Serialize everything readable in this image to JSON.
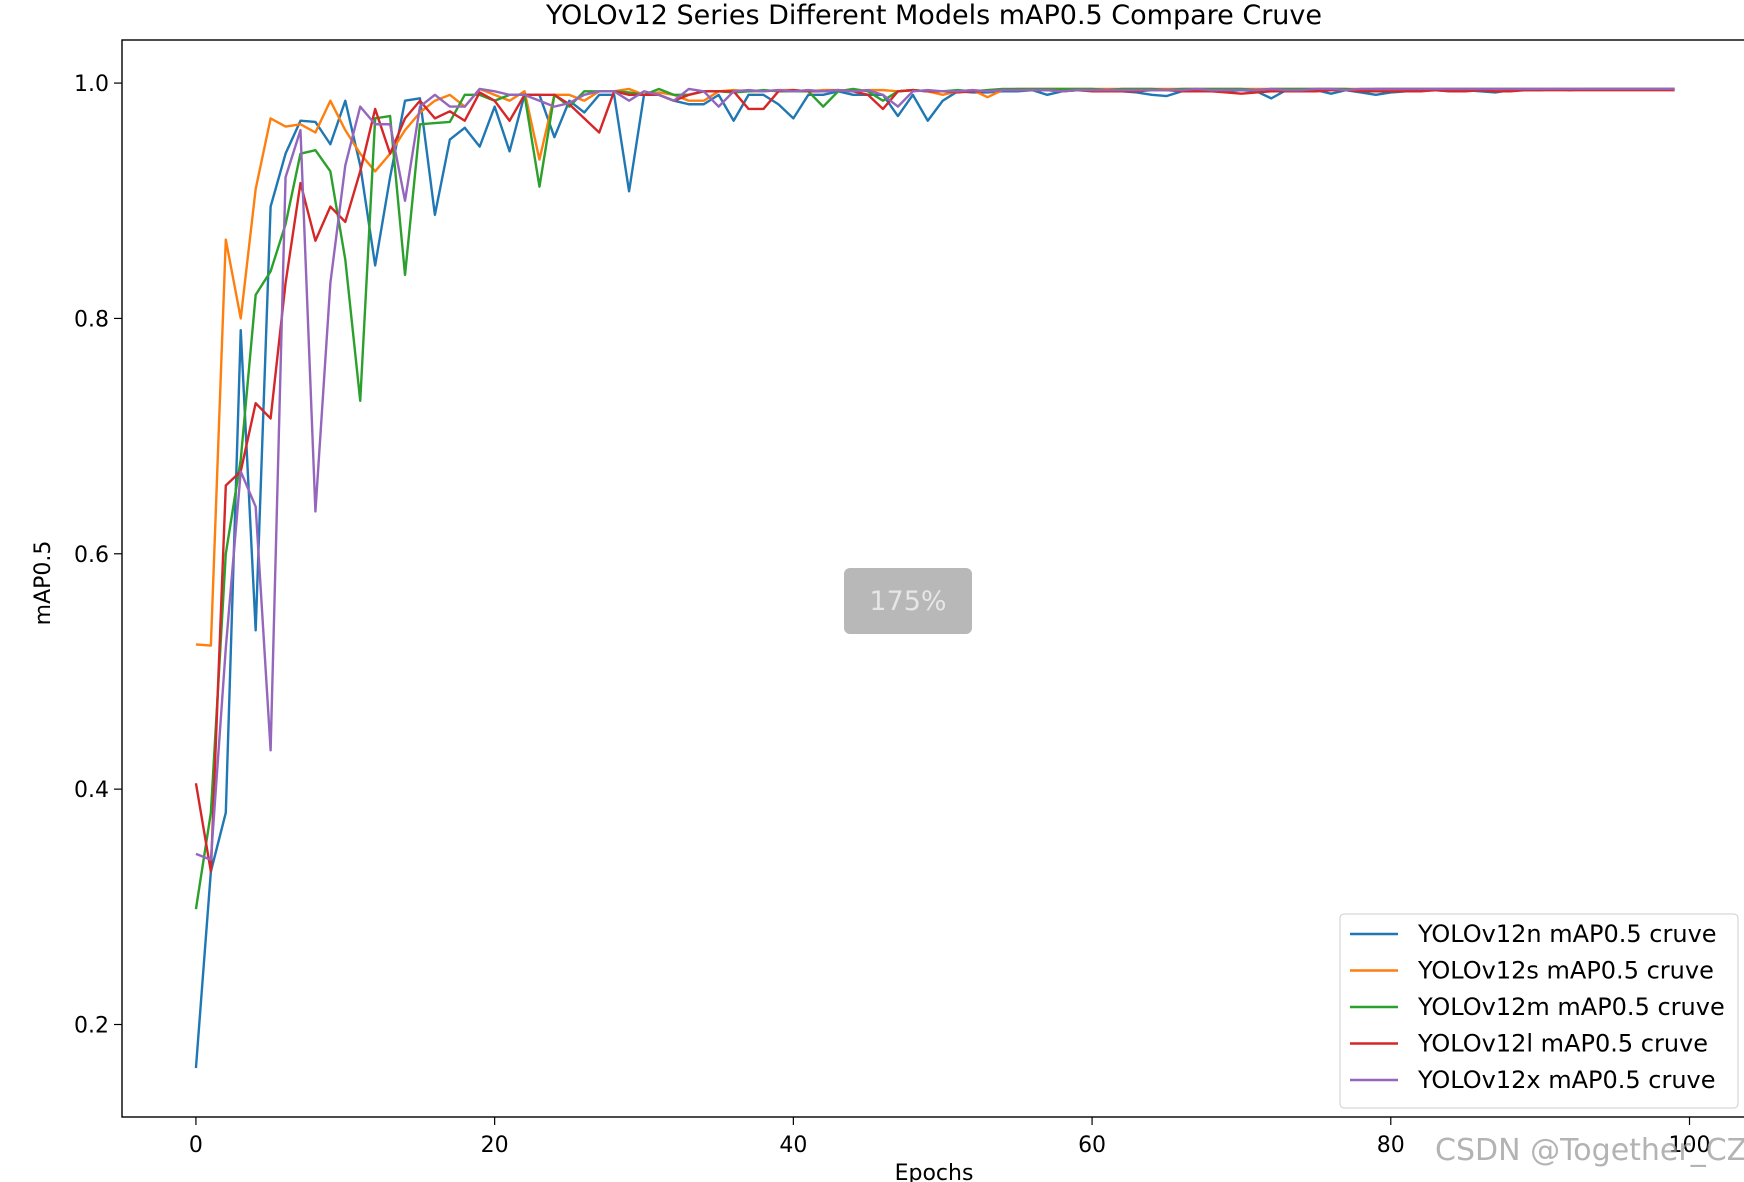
{
  "chart_data": {
    "type": "line",
    "title": "YOLOv12 Series Different Models mAP0.5 Compare Cruve",
    "x_label": "Epochs",
    "y_label": "mAP0.5",
    "x": [
      0,
      1,
      2,
      3,
      4,
      5,
      6,
      7,
      8,
      9,
      10,
      11,
      12,
      13,
      14,
      15,
      16,
      17,
      18,
      19,
      20,
      21,
      22,
      23,
      24,
      25,
      26,
      27,
      28,
      29,
      30,
      31,
      32,
      33,
      34,
      35,
      36,
      37,
      38,
      39,
      40,
      41,
      42,
      43,
      44,
      45,
      46,
      47,
      48,
      49,
      50,
      51,
      52,
      53,
      54,
      55,
      56,
      57,
      58,
      59,
      60,
      61,
      62,
      63,
      64,
      65,
      66,
      67,
      68,
      69,
      70,
      71,
      72,
      73,
      74,
      75,
      76,
      77,
      78,
      79,
      80,
      81,
      82,
      83,
      84,
      85,
      86,
      87,
      88,
      89,
      90,
      91,
      92,
      93,
      94,
      95,
      96,
      97,
      98,
      99
    ],
    "series": [
      {
        "name": "YOLOv12n mAP0.5 cruve",
        "color": "#1f77b4",
        "values": [
          0.163,
          0.33,
          0.38,
          0.79,
          0.535,
          0.895,
          0.94,
          0.968,
          0.967,
          0.948,
          0.985,
          0.93,
          0.845,
          0.92,
          0.985,
          0.987,
          0.888,
          0.952,
          0.962,
          0.946,
          0.98,
          0.942,
          0.99,
          0.99,
          0.954,
          0.985,
          0.975,
          0.99,
          0.99,
          0.908,
          0.99,
          0.99,
          0.985,
          0.982,
          0.982,
          0.99,
          0.968,
          0.99,
          0.99,
          0.982,
          0.97,
          0.99,
          0.99,
          0.993,
          0.99,
          0.99,
          0.99,
          0.972,
          0.99,
          0.968,
          0.985,
          0.993,
          0.992,
          0.992,
          0.993,
          0.993,
          0.994,
          0.99,
          0.993,
          0.994,
          0.994,
          0.993,
          0.993,
          0.992,
          0.99,
          0.989,
          0.993,
          0.994,
          0.994,
          0.993,
          0.994,
          0.993,
          0.987,
          0.994,
          0.993,
          0.994,
          0.991,
          0.994,
          0.992,
          0.99,
          0.992,
          0.993,
          0.994,
          0.994,
          0.993,
          0.994,
          0.993,
          0.992,
          0.994,
          0.994,
          0.994,
          0.995,
          0.994,
          0.995,
          0.995,
          0.995,
          0.995,
          0.995,
          0.995,
          0.995
        ]
      },
      {
        "name": "YOLOv12s mAP0.5 cruve",
        "color": "#ff7f0e",
        "values": [
          0.523,
          0.522,
          0.867,
          0.8,
          0.91,
          0.97,
          0.963,
          0.965,
          0.958,
          0.985,
          0.96,
          0.94,
          0.925,
          0.94,
          0.96,
          0.975,
          0.985,
          0.99,
          0.98,
          0.995,
          0.99,
          0.985,
          0.993,
          0.935,
          0.99,
          0.99,
          0.985,
          0.993,
          0.993,
          0.995,
          0.99,
          0.992,
          0.99,
          0.985,
          0.985,
          0.993,
          0.994,
          0.993,
          0.993,
          0.994,
          0.994,
          0.993,
          0.994,
          0.994,
          0.993,
          0.994,
          0.994,
          0.993,
          0.994,
          0.993,
          0.99,
          0.993,
          0.994,
          0.988,
          0.994,
          0.995,
          0.995,
          0.995,
          0.995,
          0.995,
          0.995,
          0.995,
          0.995,
          0.995,
          0.995,
          0.995,
          0.995,
          0.995,
          0.995,
          0.995,
          0.995,
          0.995,
          0.995,
          0.995,
          0.995,
          0.995,
          0.995,
          0.995,
          0.995,
          0.995,
          0.995,
          0.995,
          0.995,
          0.995,
          0.995,
          0.995,
          0.995,
          0.995,
          0.995,
          0.995,
          0.995,
          0.995,
          0.995,
          0.995,
          0.995,
          0.995,
          0.995,
          0.995,
          0.995,
          0.995
        ]
      },
      {
        "name": "YOLOv12m mAP0.5 cruve",
        "color": "#2ca02c",
        "values": [
          0.298,
          0.38,
          0.6,
          0.68,
          0.82,
          0.84,
          0.88,
          0.94,
          0.943,
          0.925,
          0.85,
          0.73,
          0.97,
          0.972,
          0.837,
          0.965,
          0.966,
          0.967,
          0.99,
          0.99,
          0.985,
          0.99,
          0.99,
          0.912,
          0.99,
          0.98,
          0.993,
          0.993,
          0.993,
          0.992,
          0.99,
          0.995,
          0.99,
          0.99,
          0.993,
          0.993,
          0.992,
          0.993,
          0.994,
          0.993,
          0.993,
          0.993,
          0.98,
          0.993,
          0.995,
          0.993,
          0.985,
          0.993,
          0.994,
          0.993,
          0.993,
          0.994,
          0.993,
          0.994,
          0.995,
          0.995,
          0.995,
          0.995,
          0.995,
          0.995,
          0.995,
          0.994,
          0.995,
          0.995,
          0.995,
          0.994,
          0.995,
          0.995,
          0.995,
          0.995,
          0.995,
          0.994,
          0.995,
          0.995,
          0.995,
          0.995,
          0.995,
          0.995,
          0.994,
          0.995,
          0.995,
          0.995,
          0.995,
          0.995,
          0.995,
          0.995,
          0.995,
          0.995,
          0.995,
          0.995,
          0.995,
          0.995,
          0.995,
          0.995,
          0.995,
          0.995,
          0.995,
          0.995,
          0.995,
          0.995
        ]
      },
      {
        "name": "YOLOv12l mAP0.5 cruve",
        "color": "#d62728",
        "values": [
          0.405,
          0.33,
          0.658,
          0.67,
          0.728,
          0.715,
          0.83,
          0.915,
          0.866,
          0.895,
          0.882,
          0.925,
          0.978,
          0.94,
          0.97,
          0.985,
          0.97,
          0.976,
          0.968,
          0.992,
          0.985,
          0.968,
          0.99,
          0.99,
          0.99,
          0.982,
          0.97,
          0.958,
          0.993,
          0.99,
          0.99,
          0.99,
          0.985,
          0.99,
          0.993,
          0.993,
          0.993,
          0.978,
          0.978,
          0.993,
          0.994,
          0.993,
          0.993,
          0.994,
          0.993,
          0.99,
          0.978,
          0.993,
          0.994,
          0.993,
          0.993,
          0.992,
          0.993,
          0.993,
          0.994,
          0.994,
          0.994,
          0.994,
          0.993,
          0.994,
          0.993,
          0.993,
          0.993,
          0.993,
          0.994,
          0.994,
          0.993,
          0.993,
          0.993,
          0.992,
          0.991,
          0.992,
          0.993,
          0.993,
          0.993,
          0.993,
          0.994,
          0.994,
          0.993,
          0.993,
          0.993,
          0.993,
          0.993,
          0.994,
          0.993,
          0.993,
          0.994,
          0.993,
          0.993,
          0.994,
          0.994,
          0.994,
          0.994,
          0.994,
          0.994,
          0.994,
          0.994,
          0.994,
          0.994,
          0.994
        ]
      },
      {
        "name": "YOLOv12x mAP0.5 cruve",
        "color": "#9467bd",
        "values": [
          0.345,
          0.34,
          0.52,
          0.67,
          0.64,
          0.433,
          0.92,
          0.96,
          0.636,
          0.83,
          0.93,
          0.98,
          0.965,
          0.965,
          0.9,
          0.98,
          0.99,
          0.98,
          0.98,
          0.995,
          0.993,
          0.99,
          0.99,
          0.985,
          0.98,
          0.983,
          0.99,
          0.993,
          0.993,
          0.985,
          0.993,
          0.99,
          0.985,
          0.995,
          0.993,
          0.98,
          0.993,
          0.994,
          0.993,
          0.994,
          0.993,
          0.994,
          0.993,
          0.994,
          0.993,
          0.994,
          0.99,
          0.98,
          0.993,
          0.994,
          0.993,
          0.993,
          0.994,
          0.993,
          0.994,
          0.994,
          0.994,
          0.994,
          0.993,
          0.994,
          0.994,
          0.994,
          0.994,
          0.994,
          0.994,
          0.994,
          0.994,
          0.995,
          0.994,
          0.994,
          0.994,
          0.994,
          0.995,
          0.994,
          0.994,
          0.995,
          0.995,
          0.994,
          0.995,
          0.995,
          0.995,
          0.995,
          0.995,
          0.995,
          0.995,
          0.995,
          0.995,
          0.995,
          0.995,
          0.995,
          0.995,
          0.995,
          0.995,
          0.995,
          0.995,
          0.995,
          0.995,
          0.995,
          0.995,
          0.995
        ]
      }
    ],
    "xlim": [
      -4.95,
      103.95
    ],
    "ylim": [
      0.1214,
      1.0366
    ],
    "xticks": [
      0,
      20,
      40,
      60,
      80,
      100
    ],
    "yticks": [
      0.2,
      0.4,
      0.6,
      0.8,
      {
        "value": 1,
        "label": "1.0"
      }
    ],
    "grid": false,
    "legend": "lower right",
    "annotations": [
      "175%",
      "CSDN @Together_CZ"
    ]
  }
}
